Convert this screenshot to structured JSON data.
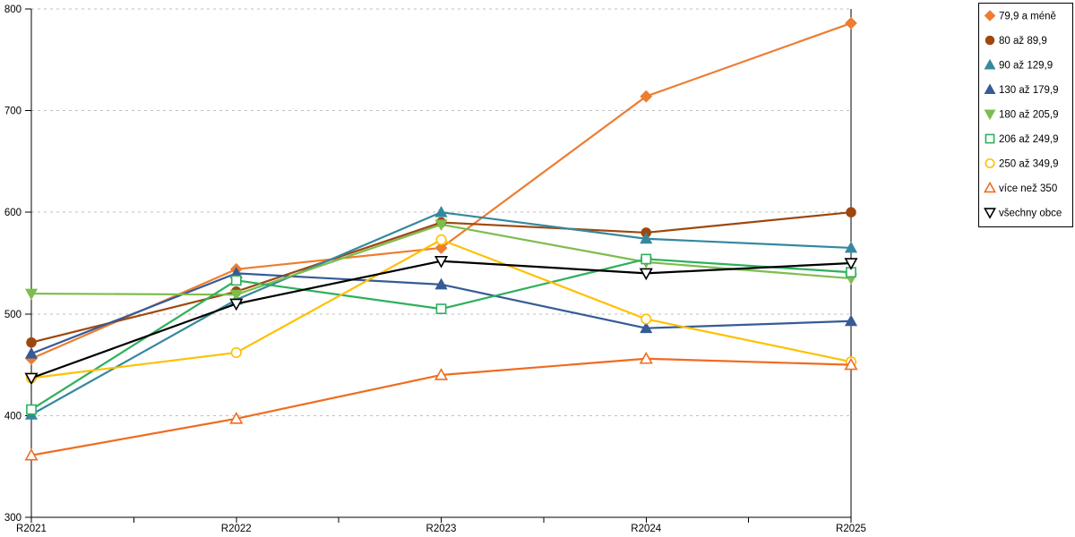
{
  "chart_data": {
    "type": "line",
    "title": "",
    "xlabel": "",
    "ylabel": "",
    "categories": [
      "R2021",
      "R2022",
      "R2023",
      "R2024",
      "R2025"
    ],
    "series": [
      {
        "name": "79,9 a méně",
        "color": "#ED7D31",
        "marker": "diamond",
        "filled": true,
        "values": [
          456,
          544,
          565,
          714,
          786
        ]
      },
      {
        "name": "80 až 89,9",
        "color": "#9E480E",
        "marker": "circle",
        "filled": true,
        "values": [
          472,
          522,
          590,
          580,
          600
        ]
      },
      {
        "name": "90 až 129,9",
        "color": "#35889F",
        "marker": "triangle-up",
        "filled": true,
        "values": [
          401,
          514,
          600,
          574,
          565
        ]
      },
      {
        "name": "130 až 179,9",
        "color": "#365B96",
        "marker": "triangle-up",
        "filled": true,
        "values": [
          461,
          540,
          529,
          486,
          493
        ]
      },
      {
        "name": "180 až 205,9",
        "color": "#7FBC4E",
        "marker": "triangle-down",
        "filled": true,
        "values": [
          520,
          519,
          588,
          551,
          535
        ]
      },
      {
        "name": "206 až 249,9",
        "color": "#2EB05C",
        "marker": "square",
        "filled": false,
        "values": [
          406,
          533,
          505,
          554,
          541
        ]
      },
      {
        "name": "250 až 349,9",
        "color": "#FFC000",
        "marker": "circle",
        "filled": false,
        "values": [
          437,
          462,
          573,
          495,
          453
        ]
      },
      {
        "name": "více než 350",
        "color": "#F06B21",
        "marker": "triangle-up",
        "filled": false,
        "values": [
          361,
          397,
          440,
          456,
          450
        ]
      },
      {
        "name": "všechny obce",
        "color": "#000000",
        "marker": "triangle-down",
        "filled": false,
        "values": [
          437,
          510,
          552,
          540,
          550
        ]
      }
    ],
    "ylim": [
      300,
      800
    ],
    "yticks": [
      300,
      400,
      500,
      600,
      700,
      800
    ],
    "grid": "horizontal-dashed",
    "grid_color": "#BFBFBF",
    "axis_color": "#000000",
    "legend_position": "right",
    "legend_border_color": "#000000"
  }
}
